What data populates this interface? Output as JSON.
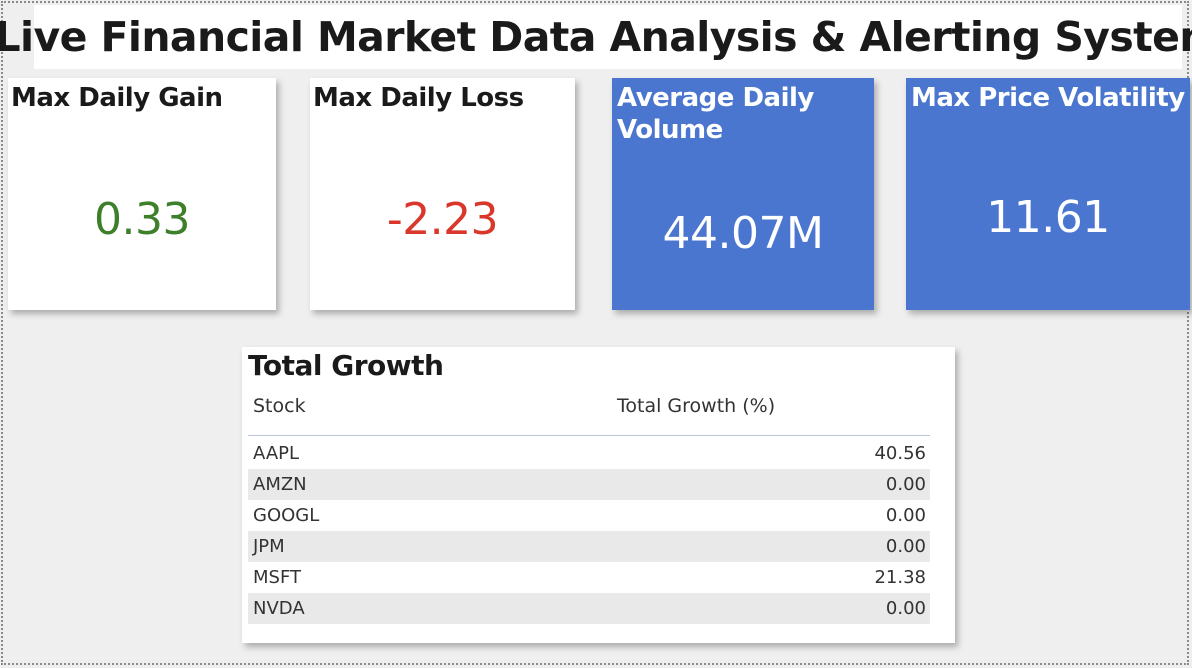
{
  "header": {
    "title": "Live Financial Market Data Analysis & Alerting System"
  },
  "cards": [
    {
      "label": "Max Daily Gain",
      "value": "0.33",
      "color": "#3d7f2a"
    },
    {
      "label": "Max Daily Loss",
      "value": "-2.23",
      "color": "#d9372b"
    },
    {
      "label": "Average Daily Volume",
      "value": "44.07M",
      "color": "#ffffff"
    },
    {
      "label": "Max Price Volatility",
      "value": "11.61",
      "color": "#ffffff"
    }
  ],
  "growth_table": {
    "title": "Total Growth",
    "columns": [
      "Stock",
      "Total Growth (%)"
    ],
    "rows": [
      {
        "stock": "AAPL",
        "growth": "40.56"
      },
      {
        "stock": "AMZN",
        "growth": "0.00"
      },
      {
        "stock": "GOOGL",
        "growth": "0.00"
      },
      {
        "stock": "JPM",
        "growth": "0.00"
      },
      {
        "stock": "MSFT",
        "growth": "21.38"
      },
      {
        "stock": "NVDA",
        "growth": "0.00"
      }
    ]
  },
  "colors": {
    "card_blue": "#4a76cf",
    "canvas": "#efefef"
  }
}
